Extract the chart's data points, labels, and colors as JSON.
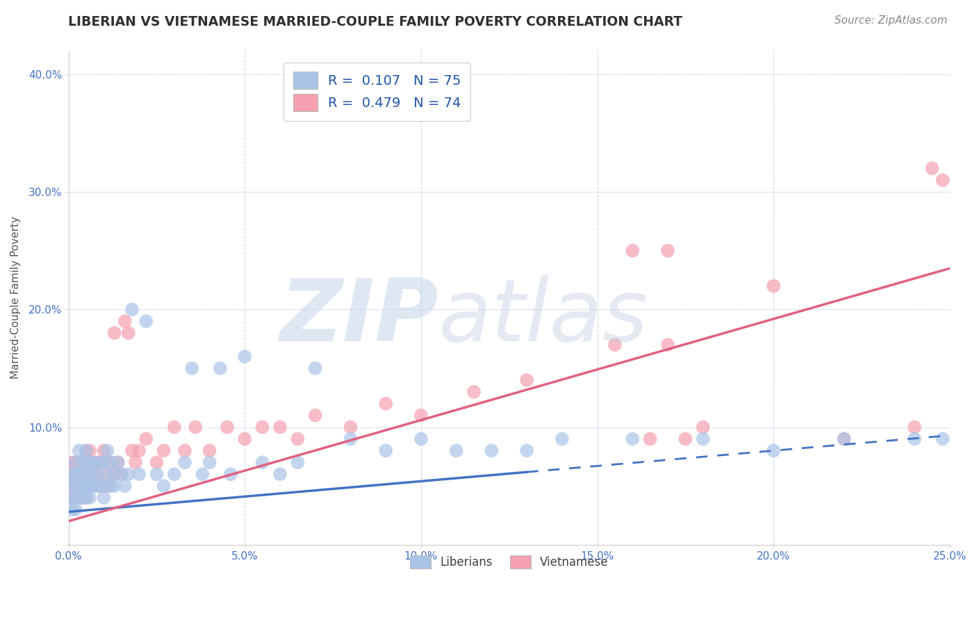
{
  "title": "LIBERIAN VS VIETNAMESE MARRIED-COUPLE FAMILY POVERTY CORRELATION CHART",
  "source": "Source: ZipAtlas.com",
  "ylabel": "Married-Couple Family Poverty",
  "xlim": [
    0.0,
    0.25
  ],
  "ylim": [
    0.0,
    0.42
  ],
  "xticks": [
    0.0,
    0.05,
    0.1,
    0.15,
    0.2,
    0.25
  ],
  "xticklabels": [
    "0.0%",
    "",
    "",
    "",
    "",
    "25.0%"
  ],
  "yticks": [
    0.0,
    0.1,
    0.2,
    0.3,
    0.4
  ],
  "yticklabels": [
    "",
    "10.0%",
    "20.0%",
    "30.0%",
    "40.0%"
  ],
  "liberian_color": "#aac4e8",
  "vietnamese_color": "#f4a0b0",
  "liberian_line_color": "#4472c4",
  "vietnamese_line_color": "#e06080",
  "liberian_R": 0.107,
  "liberian_N": 75,
  "vietnamese_R": 0.479,
  "vietnamese_N": 74,
  "watermark_zip": "ZIP",
  "watermark_atlas": "atlas",
  "background_color": "#ffffff",
  "grid_color": "#c8d4e8",
  "title_color": "#303030",
  "axis_label_color": "#4472c4",
  "legend_text_color": "#2255aa",
  "lib_line_intercept": 0.028,
  "lib_line_slope": 0.26,
  "lib_line_solid_end": 0.13,
  "vie_line_intercept": 0.02,
  "vie_line_slope": 0.86,
  "vie_line_solid_end": 0.25,
  "liberian_x": [
    0.001,
    0.001,
    0.001,
    0.001,
    0.002,
    0.002,
    0.002,
    0.002,
    0.002,
    0.003,
    0.003,
    0.003,
    0.003,
    0.004,
    0.004,
    0.004,
    0.004,
    0.005,
    0.005,
    0.005,
    0.005,
    0.005,
    0.006,
    0.006,
    0.006,
    0.007,
    0.007,
    0.007,
    0.008,
    0.008,
    0.009,
    0.009,
    0.01,
    0.01,
    0.01,
    0.011,
    0.011,
    0.012,
    0.012,
    0.013,
    0.013,
    0.014,
    0.015,
    0.016,
    0.017,
    0.018,
    0.02,
    0.022,
    0.025,
    0.027,
    0.03,
    0.033,
    0.035,
    0.038,
    0.04,
    0.043,
    0.046,
    0.05,
    0.055,
    0.06,
    0.065,
    0.07,
    0.08,
    0.09,
    0.1,
    0.11,
    0.12,
    0.13,
    0.14,
    0.16,
    0.18,
    0.2,
    0.22,
    0.24,
    0.248
  ],
  "liberian_y": [
    0.05,
    0.04,
    0.03,
    0.06,
    0.05,
    0.04,
    0.07,
    0.03,
    0.06,
    0.05,
    0.08,
    0.04,
    0.06,
    0.05,
    0.07,
    0.04,
    0.06,
    0.05,
    0.07,
    0.04,
    0.08,
    0.06,
    0.05,
    0.07,
    0.04,
    0.06,
    0.05,
    0.07,
    0.05,
    0.06,
    0.05,
    0.07,
    0.05,
    0.07,
    0.04,
    0.06,
    0.08,
    0.05,
    0.07,
    0.06,
    0.05,
    0.07,
    0.06,
    0.05,
    0.06,
    0.2,
    0.06,
    0.19,
    0.06,
    0.05,
    0.06,
    0.07,
    0.15,
    0.06,
    0.07,
    0.15,
    0.06,
    0.16,
    0.07,
    0.06,
    0.07,
    0.15,
    0.09,
    0.08,
    0.09,
    0.08,
    0.08,
    0.08,
    0.09,
    0.09,
    0.09,
    0.08,
    0.09,
    0.09,
    0.09
  ],
  "vietnamese_x": [
    0.001,
    0.001,
    0.001,
    0.001,
    0.002,
    0.002,
    0.002,
    0.002,
    0.003,
    0.003,
    0.003,
    0.003,
    0.004,
    0.004,
    0.004,
    0.005,
    0.005,
    0.005,
    0.005,
    0.006,
    0.006,
    0.006,
    0.007,
    0.007,
    0.007,
    0.008,
    0.008,
    0.008,
    0.009,
    0.009,
    0.01,
    0.01,
    0.011,
    0.011,
    0.012,
    0.013,
    0.013,
    0.014,
    0.015,
    0.016,
    0.017,
    0.018,
    0.019,
    0.02,
    0.022,
    0.025,
    0.027,
    0.03,
    0.033,
    0.036,
    0.04,
    0.045,
    0.05,
    0.055,
    0.06,
    0.065,
    0.07,
    0.08,
    0.09,
    0.1,
    0.115,
    0.13,
    0.155,
    0.165,
    0.17,
    0.175,
    0.18,
    0.2,
    0.22,
    0.24,
    0.245,
    0.248,
    0.16,
    0.17
  ],
  "vietnamese_y": [
    0.05,
    0.04,
    0.06,
    0.07,
    0.05,
    0.06,
    0.04,
    0.07,
    0.05,
    0.07,
    0.04,
    0.06,
    0.05,
    0.07,
    0.04,
    0.06,
    0.05,
    0.08,
    0.04,
    0.06,
    0.05,
    0.08,
    0.06,
    0.05,
    0.07,
    0.05,
    0.07,
    0.06,
    0.05,
    0.07,
    0.05,
    0.08,
    0.06,
    0.05,
    0.07,
    0.06,
    0.18,
    0.07,
    0.06,
    0.19,
    0.18,
    0.08,
    0.07,
    0.08,
    0.09,
    0.07,
    0.08,
    0.1,
    0.08,
    0.1,
    0.08,
    0.1,
    0.09,
    0.1,
    0.1,
    0.09,
    0.11,
    0.1,
    0.12,
    0.11,
    0.13,
    0.14,
    0.17,
    0.09,
    0.17,
    0.09,
    0.1,
    0.22,
    0.09,
    0.1,
    0.32,
    0.31,
    0.25,
    0.25
  ]
}
